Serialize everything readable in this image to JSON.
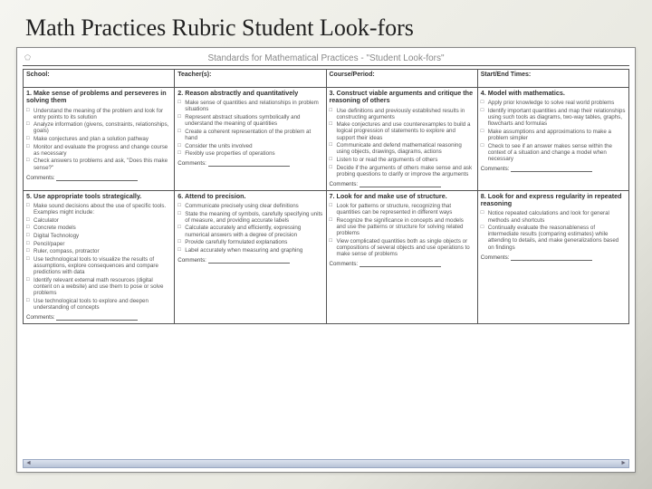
{
  "slide": {
    "title": "Math Practices Rubric Student Look-fors"
  },
  "doc": {
    "title": "Standards for Mathematical Practices - \"Student Look-fors\"",
    "header_row": [
      "School:",
      "Teacher(s):",
      "Course/Period:",
      "Start/End Times:"
    ],
    "comments_label": "Comments:",
    "practices_row1": [
      {
        "num": "1.",
        "title": "Make sense of problems and perseveres in solving them",
        "items": [
          "Understand the meaning of the problem and look for entry points to its solution",
          "Analyze information (givens, constraints, relationships, goals)",
          "Make conjectures and plan a solution pathway",
          "Monitor and evaluate the progress and change course as necessary",
          "Check answers to problems and ask, \"Does this make sense?\""
        ]
      },
      {
        "num": "2.",
        "title": "Reason abstractly and quantitatively",
        "items": [
          "Make sense of quantities and relationships in problem situations",
          "Represent abstract situations symbolically and understand the meaning of quantities",
          "Create a coherent representation of the problem at hand",
          "Consider the units involved",
          "Flexibly use properties of operations"
        ]
      },
      {
        "num": "3.",
        "title": "Construct viable arguments and critique the reasoning of others",
        "items": [
          "Use definitions and previously established results in constructing arguments",
          "Make conjectures and use counterexamples to build a logical progression of statements to explore and support their ideas",
          "Communicate and defend mathematical reasoning using objects, drawings, diagrams, actions",
          "Listen to or read the arguments of others",
          "Decide if the arguments of others make sense and ask probing questions to clarify or improve the arguments"
        ]
      },
      {
        "num": "4.",
        "title": "Model with mathematics.",
        "items": [
          "Apply prior knowledge to solve real world problems",
          "Identify important quantities and map their relationships using such tools as diagrams, two-way tables, graphs, flowcharts and formulas",
          "Make assumptions and approximations to make a problem simpler",
          "Check to see if an answer makes sense within the context of a situation and change a model when necessary"
        ]
      }
    ],
    "practices_row2": [
      {
        "num": "5.",
        "title": "Use appropriate tools strategically.",
        "items": [
          "Make sound decisions about the use of specific tools. Examples might include:",
          "Calculator",
          "Concrete models",
          "Digital Technology",
          "Pencil/paper",
          "Ruler, compass, protractor",
          "Use technological tools to visualize the results of assumptions, explore consequences and compare predictions with data",
          "Identify relevant external math resources (digital content on a website) and use them to pose or solve problems",
          "Use technological tools to explore and deepen understanding of concepts"
        ]
      },
      {
        "num": "6.",
        "title": "Attend to precision.",
        "items": [
          "Communicate precisely using clear definitions",
          "State the meaning of symbols, carefully specifying units of measure, and providing accurate labels",
          "Calculate accurately and efficiently, expressing numerical answers with a degree of precision",
          "Provide carefully formulated explanations",
          "Label accurately when measuring and graphing"
        ]
      },
      {
        "num": "7.",
        "title": "Look for and make use of structure.",
        "items": [
          "Look for patterns or structure, recognizing that quantities can be represented in different ways",
          "Recognize the significance in concepts and models and use the patterns or structure for solving related problems",
          "View complicated quantities both as single objects or compositions of several objects and use operations to make sense of problems"
        ]
      },
      {
        "num": "8.",
        "title": "Look for and express regularity in repeated reasoning",
        "items": [
          "Notice repeated calculations and look for general methods and shortcuts",
          "Continually evaluate the reasonableness of intermediate results (comparing estimates) while attending to details, and make generalizations based on findings"
        ]
      }
    ]
  },
  "colors": {
    "border": "#555555",
    "text": "#333333",
    "muted": "#888888"
  }
}
